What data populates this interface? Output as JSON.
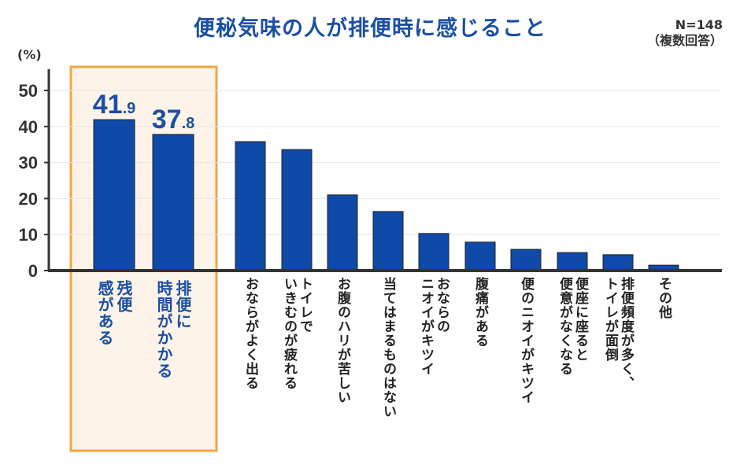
{
  "chart_data": {
    "type": "bar",
    "title": "便秘気味の人が排便時に感じること",
    "note_n": "N=148",
    "note_format": "（複数回答）",
    "ylabel": "(%)",
    "ylim": [
      0,
      50
    ],
    "yticks": [
      "0",
      "10",
      "20",
      "30",
      "40",
      "50"
    ],
    "grid": true,
    "categories": [
      "残便\n感がある",
      "排便に\n時間がかかる",
      "おならがよく出る",
      "トイレで\nいきむのが疲れる",
      "お腹のハリが苦しい",
      "当てはまるものはない",
      "おならの\nニオイがキツイ",
      "腹痛がある",
      "便のニオイがキツイ",
      "便座に座ると\n便意がなくなる",
      "排便頻度が多く、\nトイレが面倒",
      "その他"
    ],
    "values": [
      41.9,
      37.8,
      35.8,
      33.6,
      21.0,
      16.4,
      10.3,
      7.9,
      5.9,
      5.0,
      4.4,
      1.5
    ],
    "highlighted": [
      0,
      1
    ],
    "data_labels": [
      {
        "main": "41",
        "dec": ".9"
      },
      {
        "main": "37",
        "dec": ".8"
      }
    ],
    "colors": {
      "bar": "#0f4aa8",
      "highlight_box": "#f5a443",
      "highlight_fill": "#fdf3e8",
      "title": "#1b4fa3"
    }
  }
}
